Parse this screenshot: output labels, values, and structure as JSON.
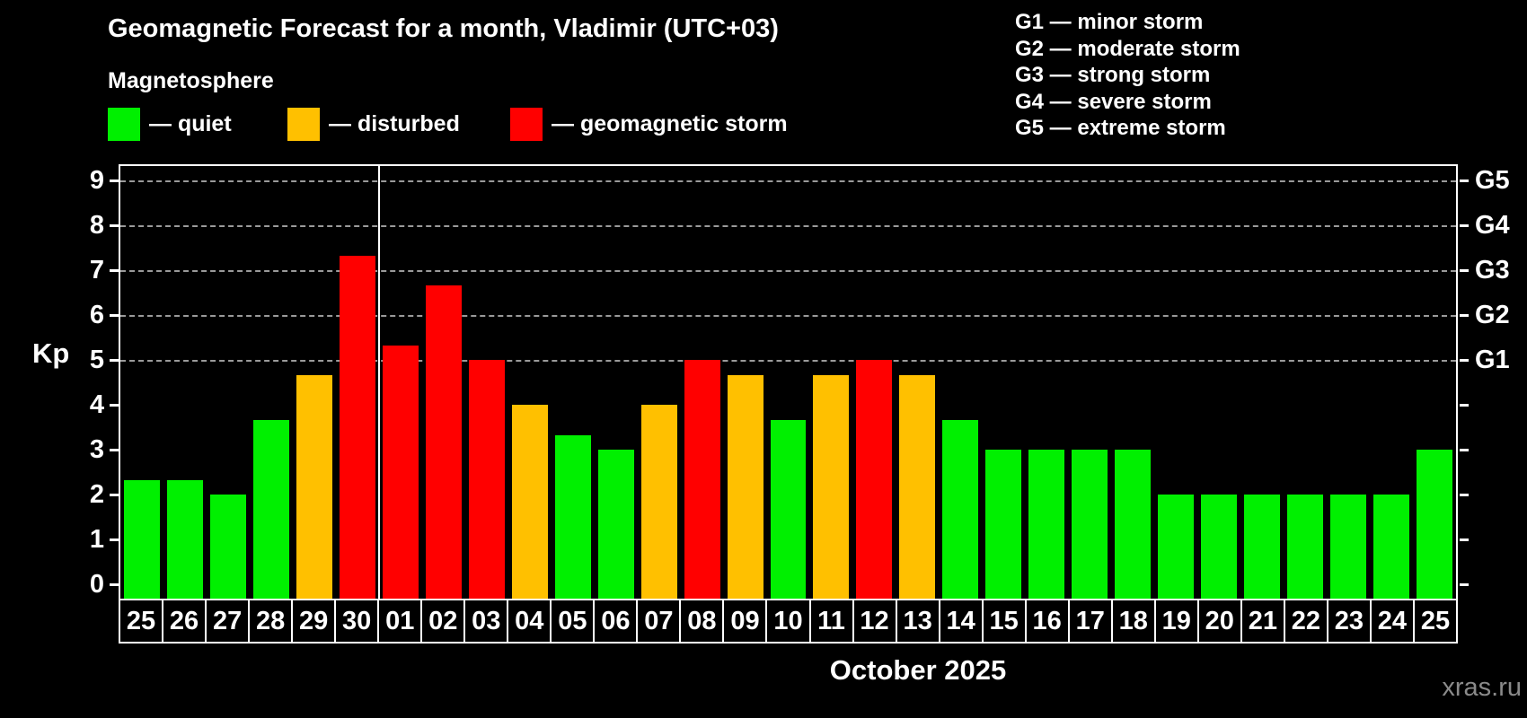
{
  "header": {
    "title": "Geomagnetic Forecast for a month, Vladimir (UTC+03)",
    "subtitle": "Magnetosphere",
    "watermark": "xras.ru"
  },
  "legend": {
    "items": [
      {
        "key": "quiet",
        "label": "— quiet",
        "color": "#00f000"
      },
      {
        "key": "disturbed",
        "label": "— disturbed",
        "color": "#ffc000"
      },
      {
        "key": "storm",
        "label": "— geomagnetic storm",
        "color": "#ff0000"
      }
    ]
  },
  "storm_scale_legend": {
    "items": [
      "G1 — minor storm",
      "G2 — moderate storm",
      "G3 — strong storm",
      "G4 — severe storm",
      "G5 — extreme storm"
    ]
  },
  "chart_data": {
    "type": "bar",
    "title": "Geomagnetic Forecast for a month, Vladimir (UTC+03)",
    "ylabel": "Kp",
    "xlabel": "October 2025",
    "ylim": [
      0,
      9.4
    ],
    "yticks": [
      0,
      1,
      2,
      3,
      4,
      5,
      6,
      7,
      8,
      9
    ],
    "grid_levels": [
      5,
      6,
      7,
      8,
      9
    ],
    "grid_on": true,
    "legend_position": "top-left",
    "right_axis_labels": [
      {
        "kp": 5,
        "label": "G1"
      },
      {
        "kp": 6,
        "label": "G2"
      },
      {
        "kp": 7,
        "label": "G3"
      },
      {
        "kp": 8,
        "label": "G4"
      },
      {
        "kp": 9,
        "label": "G5"
      }
    ],
    "month_separator_after_index": 5,
    "colors": {
      "quiet": "#00f000",
      "disturbed": "#ffc000",
      "storm": "#ff0000"
    },
    "bars": [
      {
        "date": "25",
        "kp": 2.33,
        "level": "quiet"
      },
      {
        "date": "26",
        "kp": 2.33,
        "level": "quiet"
      },
      {
        "date": "27",
        "kp": 2.0,
        "level": "quiet"
      },
      {
        "date": "28",
        "kp": 3.67,
        "level": "quiet"
      },
      {
        "date": "29",
        "kp": 4.67,
        "level": "disturbed"
      },
      {
        "date": "30",
        "kp": 7.33,
        "level": "storm"
      },
      {
        "date": "01",
        "kp": 5.33,
        "level": "storm"
      },
      {
        "date": "02",
        "kp": 6.67,
        "level": "storm"
      },
      {
        "date": "03",
        "kp": 5.0,
        "level": "storm"
      },
      {
        "date": "04",
        "kp": 4.0,
        "level": "disturbed"
      },
      {
        "date": "05",
        "kp": 3.33,
        "level": "quiet"
      },
      {
        "date": "06",
        "kp": 3.0,
        "level": "quiet"
      },
      {
        "date": "07",
        "kp": 4.0,
        "level": "disturbed"
      },
      {
        "date": "08",
        "kp": 5.0,
        "level": "storm"
      },
      {
        "date": "09",
        "kp": 4.67,
        "level": "disturbed"
      },
      {
        "date": "10",
        "kp": 3.67,
        "level": "quiet"
      },
      {
        "date": "11",
        "kp": 4.67,
        "level": "disturbed"
      },
      {
        "date": "12",
        "kp": 5.0,
        "level": "storm"
      },
      {
        "date": "13",
        "kp": 4.67,
        "level": "disturbed"
      },
      {
        "date": "14",
        "kp": 3.67,
        "level": "quiet"
      },
      {
        "date": "15",
        "kp": 3.0,
        "level": "quiet"
      },
      {
        "date": "16",
        "kp": 3.0,
        "level": "quiet"
      },
      {
        "date": "17",
        "kp": 3.0,
        "level": "quiet"
      },
      {
        "date": "18",
        "kp": 3.0,
        "level": "quiet"
      },
      {
        "date": "19",
        "kp": 2.0,
        "level": "quiet"
      },
      {
        "date": "20",
        "kp": 2.0,
        "level": "quiet"
      },
      {
        "date": "21",
        "kp": 2.0,
        "level": "quiet"
      },
      {
        "date": "22",
        "kp": 2.0,
        "level": "quiet"
      },
      {
        "date": "23",
        "kp": 2.0,
        "level": "quiet"
      },
      {
        "date": "24",
        "kp": 2.0,
        "level": "quiet"
      },
      {
        "date": "25",
        "kp": 3.0,
        "level": "quiet"
      }
    ]
  }
}
